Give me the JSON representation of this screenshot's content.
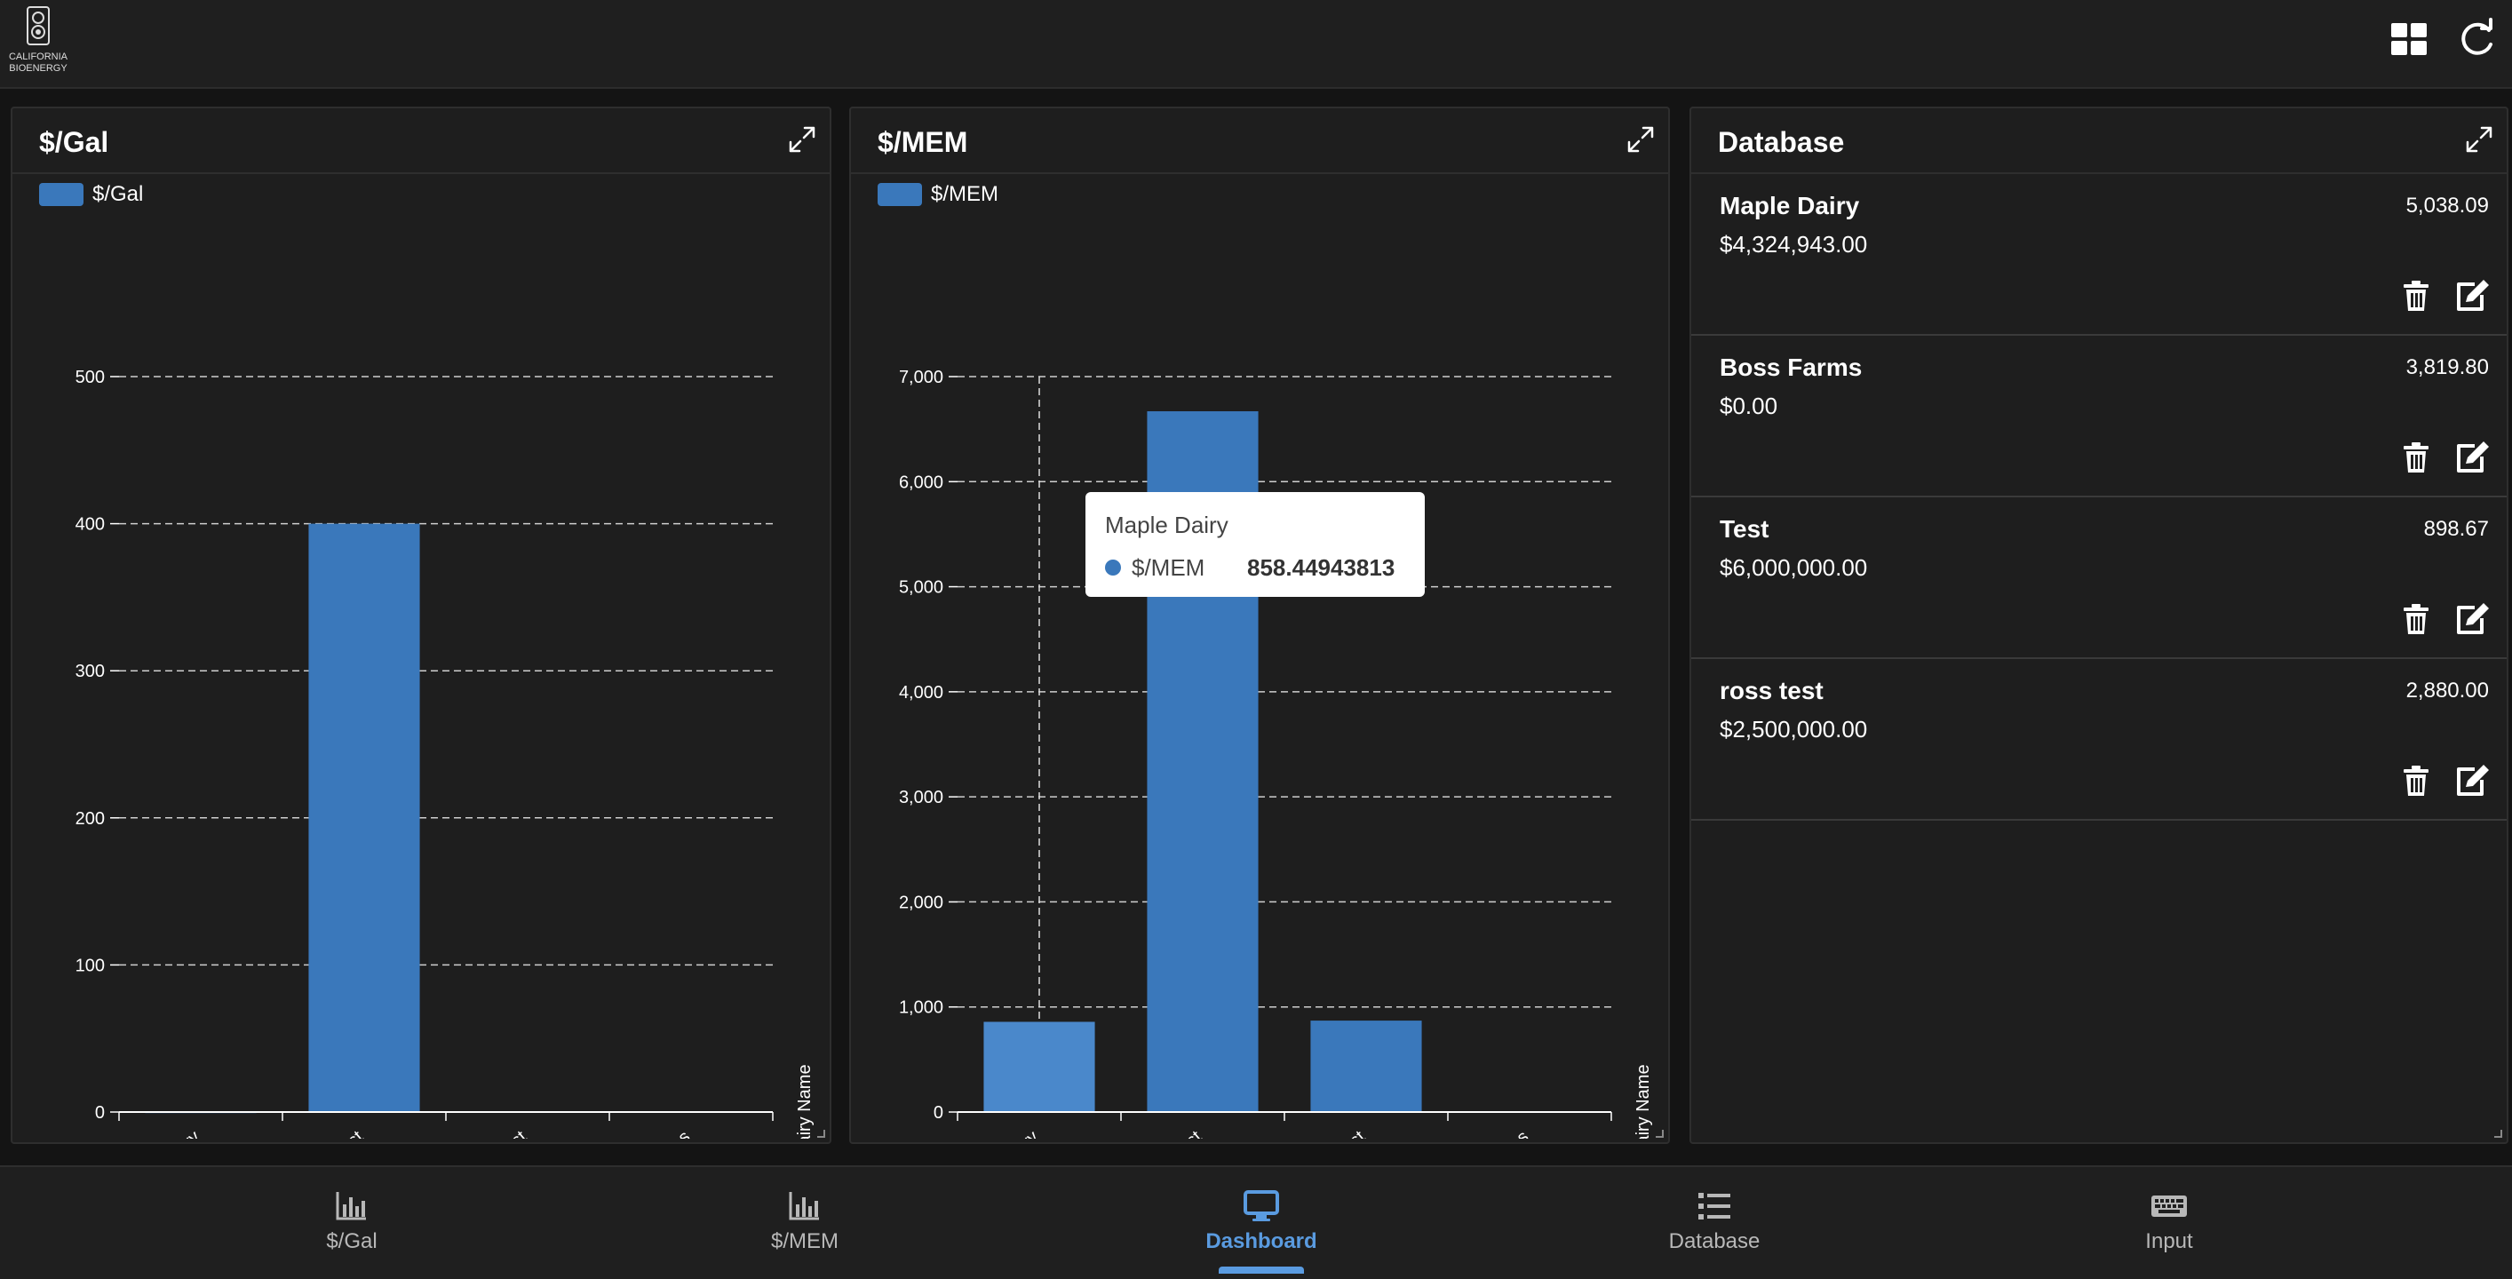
{
  "app": {
    "logo_text_line1": "CALIFORNIA",
    "logo_text_line2": "BIOENERGY"
  },
  "toolbar": {
    "grid_icon": "grid-icon",
    "refresh_icon": "refresh-icon"
  },
  "panels": {
    "gal": {
      "title": "$/Gal",
      "legend": "$/Gal",
      "axis_title": "Dairy Name"
    },
    "mem": {
      "title": "$/MEM",
      "legend": "$/MEM",
      "axis_title": "Dairy Name"
    },
    "database": {
      "title": "Database"
    }
  },
  "chart_data": [
    {
      "type": "bar",
      "title": "$/Gal",
      "xlabel": "Dairy Name",
      "ylabel": "",
      "categories": [
        "Maple Dairy",
        "Test",
        "ross test",
        "Boss Farms"
      ],
      "series": [
        {
          "name": "$/Gal",
          "values": [
            0.2,
            400,
            0.5,
            0
          ]
        }
      ],
      "ylim": [
        0,
        500
      ],
      "yticks": [
        "0",
        "100",
        "200",
        "300",
        "400",
        "500"
      ],
      "grid": true,
      "legend": "top-left",
      "color": "#3a78bb"
    },
    {
      "type": "bar",
      "title": "$/MEM",
      "xlabel": "Dairy Name",
      "ylabel": "",
      "categories": [
        "Maple Dairy",
        "Test",
        "ross test",
        "Boss Farms"
      ],
      "series": [
        {
          "name": "$/MEM",
          "values": [
            858.44943813,
            6670,
            870,
            0
          ]
        }
      ],
      "ylim": [
        0,
        7000
      ],
      "yticks": [
        "0",
        "1,000",
        "2,000",
        "3,000",
        "4,000",
        "5,000",
        "6,000",
        "7,000"
      ],
      "grid": true,
      "legend": "top-left",
      "color": "#3a78bb",
      "highlighted_index": 0
    }
  ],
  "tooltip": {
    "title": "Maple Dairy",
    "series": "$/MEM",
    "value": "858.44943813"
  },
  "database": {
    "rows": [
      {
        "name": "Maple Dairy",
        "value": "5,038.09",
        "amount": "$4,324,943.00"
      },
      {
        "name": "Boss Farms",
        "value": "3,819.80",
        "amount": "$0.00"
      },
      {
        "name": "Test",
        "value": "898.67",
        "amount": "$6,000,000.00"
      },
      {
        "name": "ross test",
        "value": "2,880.00",
        "amount": "$2,500,000.00"
      }
    ]
  },
  "nav": {
    "items": [
      {
        "label": "$/Gal",
        "icon": "bar-chart-icon"
      },
      {
        "label": "$/MEM",
        "icon": "bar-chart-icon"
      },
      {
        "label": "Dashboard",
        "icon": "monitor-icon",
        "active": true
      },
      {
        "label": "Database",
        "icon": "list-icon"
      },
      {
        "label": "Input",
        "icon": "keyboard-icon"
      }
    ]
  },
  "colors": {
    "accent": "#5a9be0",
    "bar": "#3a78bb",
    "bar_highlight": "#4a88cb",
    "background": "#141414",
    "panel": "#1e1e1e"
  }
}
